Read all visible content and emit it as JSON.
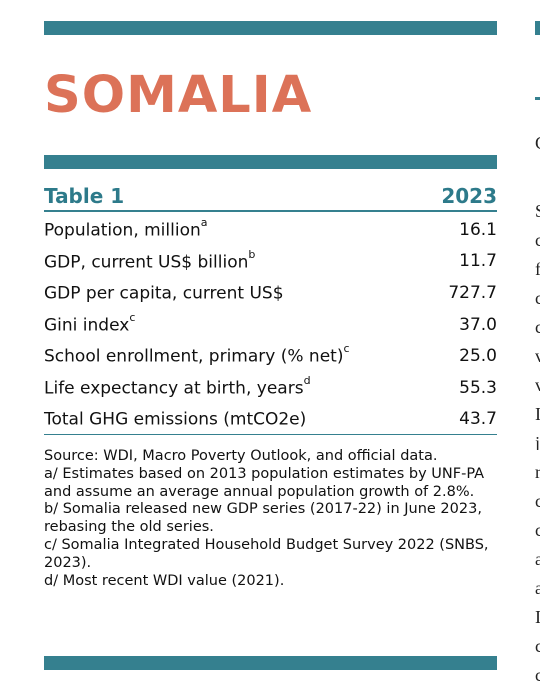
{
  "country_title": "SOMALIA",
  "table": {
    "label": "Table 1",
    "year": "2023",
    "rows": [
      {
        "label": "Population, million",
        "note": "a",
        "value": "16.1"
      },
      {
        "label": "GDP, current US$ billion",
        "note": "b",
        "value": "11.7"
      },
      {
        "label": "GDP per capita, current US$",
        "note": "",
        "value": "727.7"
      },
      {
        "label": "Gini index",
        "note": "c",
        "value": "37.0"
      },
      {
        "label": "School enrollment, primary (% net)",
        "note": "c",
        "value": "25.0"
      },
      {
        "label": "Life expectancy at birth, years",
        "note": "d",
        "value": "55.3"
      },
      {
        "label": "Total GHG emissions (mtCO2e)",
        "note": "",
        "value": "43.7"
      }
    ]
  },
  "notes": [
    "Source: WDI, Macro Poverty Outlook, and official data.",
    "a/ Estimates based on 2013 population estimates by UNF-PA and assume an average annual population growth of 2.8%.",
    "b/ Somalia released new GDP series (2017-22) in June 2023, rebasing the old series.",
    "c/ Somalia Integrated Household Budget Survey 2022 (SNBS, 2023).",
    "d/ Most recent WDI value (2021)."
  ],
  "colors": {
    "accent_teal": "#35808f",
    "title_coral": "#dc7258"
  }
}
